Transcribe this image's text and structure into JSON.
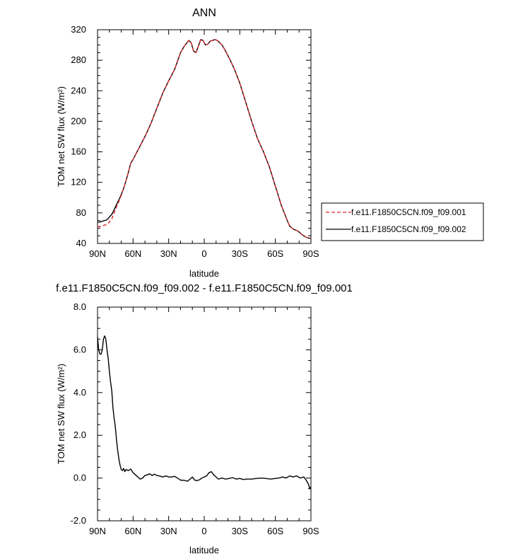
{
  "chart_data": [
    {
      "type": "line",
      "title": "ANN",
      "xlabel": "latitude",
      "ylabel": "TOM net SW flux (W/m²)",
      "xlim": [
        90,
        -90
      ],
      "ylim": [
        40,
        320
      ],
      "x_ticks": [
        90,
        60,
        30,
        0,
        -30,
        -60,
        -90
      ],
      "x_tick_labels": [
        "90N",
        "60N",
        "30N",
        "0",
        "30S",
        "60S",
        "90S"
      ],
      "y_ticks": [
        40,
        80,
        120,
        160,
        200,
        240,
        280,
        320
      ],
      "y_tick_labels": [
        "40",
        "80",
        "120",
        "160",
        "200",
        "240",
        "280",
        "320"
      ],
      "grid": false,
      "legend_position": "right",
      "series": [
        {
          "name": "f.e11.F1850C5CN.f09_f09.001",
          "color": "#d62728",
          "dash": "dashed",
          "x": [
            90,
            88,
            86,
            84,
            82,
            80,
            78,
            76,
            74,
            72,
            70,
            68,
            66,
            64,
            62,
            60,
            55,
            50,
            45,
            40,
            35,
            30,
            25,
            20,
            17,
            15,
            13,
            11,
            9,
            7,
            5,
            3,
            1,
            -1,
            -3,
            -5,
            -7,
            -9,
            -11,
            -13,
            -15,
            -18,
            -21,
            -25,
            -30,
            -35,
            -40,
            -45,
            -50,
            -55,
            -60,
            -65,
            -70,
            -72,
            -74,
            -76,
            -78,
            -80,
            -82,
            -84,
            -86,
            -88,
            -90
          ],
          "y": [
            62,
            62,
            63,
            64,
            65,
            68,
            72,
            80,
            88,
            95,
            103,
            112,
            122,
            133,
            145,
            150,
            165,
            180,
            197,
            217,
            237,
            253,
            268,
            290,
            298,
            302,
            306,
            303,
            292,
            290,
            298,
            307,
            306,
            300,
            301,
            305,
            306,
            307,
            306,
            303,
            300,
            292,
            283,
            270,
            250,
            225,
            200,
            177,
            160,
            140,
            115,
            90,
            70,
            63,
            60,
            58,
            57,
            55,
            52,
            50,
            48,
            47,
            47
          ]
        },
        {
          "name": "f.e11.F1850C5CN.f09_f09.002",
          "color": "#000000",
          "dash": "solid",
          "x": [
            90,
            88,
            86,
            84,
            82,
            80,
            78,
            76,
            74,
            72,
            70,
            68,
            66,
            64,
            62,
            60,
            55,
            50,
            45,
            40,
            35,
            30,
            25,
            20,
            17,
            15,
            13,
            11,
            9,
            7,
            5,
            3,
            1,
            -1,
            -3,
            -5,
            -7,
            -9,
            -11,
            -13,
            -15,
            -18,
            -21,
            -25,
            -30,
            -35,
            -40,
            -45,
            -50,
            -55,
            -60,
            -65,
            -70,
            -72,
            -74,
            -76,
            -78,
            -80,
            -82,
            -84,
            -86,
            -88,
            -90
          ],
          "y": [
            68,
            68,
            69,
            70,
            71,
            74.5,
            78,
            84,
            91,
            97,
            104,
            112,
            122,
            133,
            145,
            150,
            165,
            180,
            197,
            217,
            237,
            253,
            268,
            290,
            298,
            302,
            306,
            303,
            292,
            290,
            298,
            307,
            306,
            300,
            301,
            305,
            306,
            307,
            306,
            303,
            300,
            292,
            283,
            270,
            250,
            225,
            200,
            177,
            160,
            140,
            115,
            90,
            70,
            63,
            60,
            58,
            57,
            55,
            52,
            50,
            48,
            47,
            46.5
          ]
        }
      ]
    },
    {
      "type": "line",
      "title": "f.e11.F1850C5CN.f09_f09.002 - f.e11.F1850C5CN.f09_f09.001",
      "xlabel": "latitude",
      "ylabel": "TOM net SW flux (W/m²)",
      "xlim": [
        90,
        -90
      ],
      "ylim": [
        -2.0,
        8.0
      ],
      "x_ticks": [
        90,
        60,
        30,
        0,
        -30,
        -60,
        -90
      ],
      "x_tick_labels": [
        "90N",
        "60N",
        "30N",
        "0",
        "30S",
        "60S",
        "90S"
      ],
      "y_ticks": [
        -2.0,
        0.0,
        2.0,
        4.0,
        6.0,
        8.0
      ],
      "y_tick_labels": [
        "-2.0",
        "0.0",
        "2.0",
        "4.0",
        "6.0",
        "8.0"
      ],
      "grid": false,
      "series": [
        {
          "color": "#000000",
          "dash": "solid",
          "x": [
            90,
            89,
            88,
            87,
            86,
            85,
            84,
            83,
            82,
            81,
            80,
            79,
            78,
            77,
            76,
            75,
            74,
            73,
            72,
            71,
            70,
            69,
            68,
            67,
            66,
            64,
            62,
            60,
            58,
            56,
            54,
            52,
            50,
            48,
            46,
            44,
            42,
            40,
            38,
            35,
            32,
            30,
            27,
            25,
            22,
            20,
            18,
            16,
            14,
            12,
            10,
            8,
            6,
            4,
            2,
            0,
            -2,
            -4,
            -6,
            -8,
            -10,
            -12,
            -15,
            -18,
            -21,
            -24,
            -27,
            -30,
            -33,
            -36,
            -40,
            -44,
            -48,
            -52,
            -56,
            -60,
            -63,
            -66,
            -69,
            -72,
            -75,
            -78,
            -81,
            -84,
            -86,
            -88,
            -89,
            -90
          ],
          "y": [
            6.6,
            6.0,
            5.8,
            5.8,
            6.0,
            6.5,
            6.65,
            6.5,
            6.0,
            5.6,
            5.0,
            4.5,
            4.1,
            3.3,
            2.8,
            2.4,
            1.8,
            1.3,
            0.9,
            0.6,
            0.4,
            0.35,
            0.45,
            0.3,
            0.4,
            0.35,
            0.42,
            0.25,
            0.15,
            0.05,
            -0.05,
            0.0,
            0.12,
            0.15,
            0.2,
            0.12,
            0.18,
            0.12,
            0.1,
            0.05,
            0.1,
            0.05,
            0.05,
            0.08,
            -0.02,
            -0.1,
            -0.1,
            -0.12,
            -0.15,
            -0.05,
            0.05,
            -0.1,
            -0.12,
            -0.08,
            0.0,
            0.05,
            0.1,
            0.25,
            0.3,
            0.15,
            0.05,
            -0.05,
            0.0,
            -0.05,
            -0.02,
            0.02,
            -0.05,
            -0.02,
            -0.07,
            -0.05,
            -0.05,
            -0.02,
            0.0,
            -0.02,
            -0.05,
            -0.02,
            0.0,
            0.05,
            0.0,
            0.1,
            0.05,
            0.1,
            0.0,
            0.05,
            -0.1,
            -0.3,
            -0.5,
            -0.4
          ]
        }
      ]
    }
  ]
}
